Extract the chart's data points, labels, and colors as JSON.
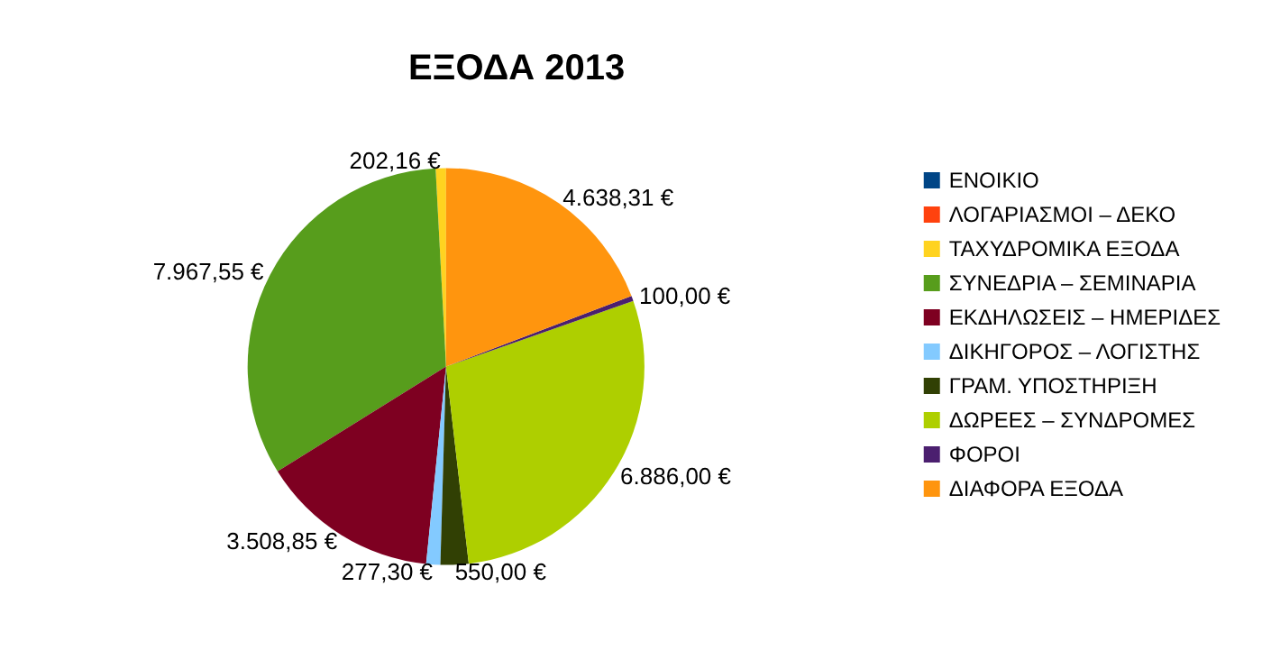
{
  "chart_data": {
    "type": "pie",
    "title": "ΕΞΟΔΑ 2013",
    "categories": [
      "ΕΝΟΙΚΙΟ",
      "ΛΟΓΑΡΙΑΣΜΟΙ – ΔΕΚΟ",
      "ΤΑΧΥΔΡΟΜΙΚΑ ΕΞΟΔΑ",
      "ΣΥΝΕΔΡΙΑ – ΣΕΜΙΝΑΡΙΑ",
      "ΕΚΔΗΛΩΣΕΙΣ – ΗΜΕΡΙΔΕΣ",
      "ΔΙΚΗΓΟΡΟΣ – ΛΟΓΙΣΤΗΣ",
      "ΓΡΑΜ. ΥΠΟΣΤΗΡΙΞΗ",
      "ΔΩΡΕΕΣ – ΣΥΝΔΡΟΜΕΣ",
      "ΦΟΡΟΙ",
      "ΔΙΑΦΟΡΑ ΕΞΟΔΑ"
    ],
    "values": [
      0,
      0,
      202.16,
      7967.55,
      3508.85,
      277.3,
      550,
      6886,
      100,
      4638.31
    ],
    "value_labels": [
      null,
      null,
      "202,16 €",
      "7.967,55 €",
      "3.508,85 €",
      "277,30 €",
      "550,00 €",
      "6.886,00 €",
      "100,00 €",
      "4.638,31 €"
    ],
    "colors": [
      "#004586",
      "#ff420e",
      "#ffd320",
      "#579d1c",
      "#7e0021",
      "#83caff",
      "#314004",
      "#aecf00",
      "#4b1f6f",
      "#ff950e"
    ],
    "legend": "right"
  }
}
